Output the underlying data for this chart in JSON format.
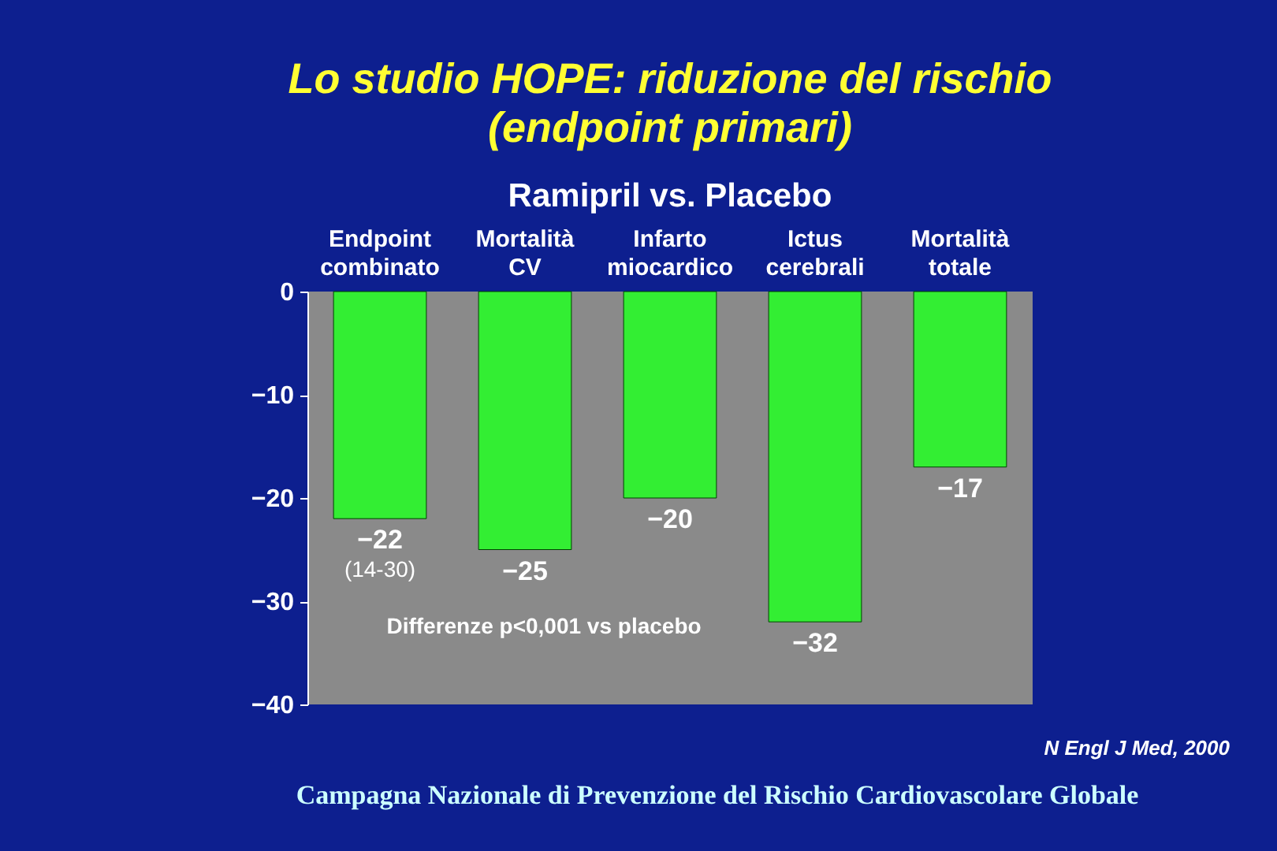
{
  "chart_data": {
    "type": "bar",
    "title": "Lo studio HOPE: riduzione del rischio\n(endpoint primari)",
    "subtitle": "Ramipril vs. Placebo",
    "categories": [
      "Endpoint combinato",
      "Mortalità CV",
      "Infarto miocardico",
      "Ictus cerebrali",
      "Mortalità totale"
    ],
    "values": [
      -22,
      -25,
      -20,
      -32,
      -17
    ],
    "color": "#33ee33",
    "data_labels": true,
    "ylim": [
      -40,
      0
    ],
    "yticks": [
      0,
      -10,
      -20,
      -30,
      -40
    ],
    "grid": false,
    "annotations": [
      {
        "text": "(14-30)",
        "x": "Endpoint combinato",
        "y": -22
      },
      "Differenze p<0,001 vs placebo",
      "N Engl J Med, 2000",
      "Campagna Nazionale di Prevenzione del Rischio Cardiovascolare Globale"
    ]
  }
}
